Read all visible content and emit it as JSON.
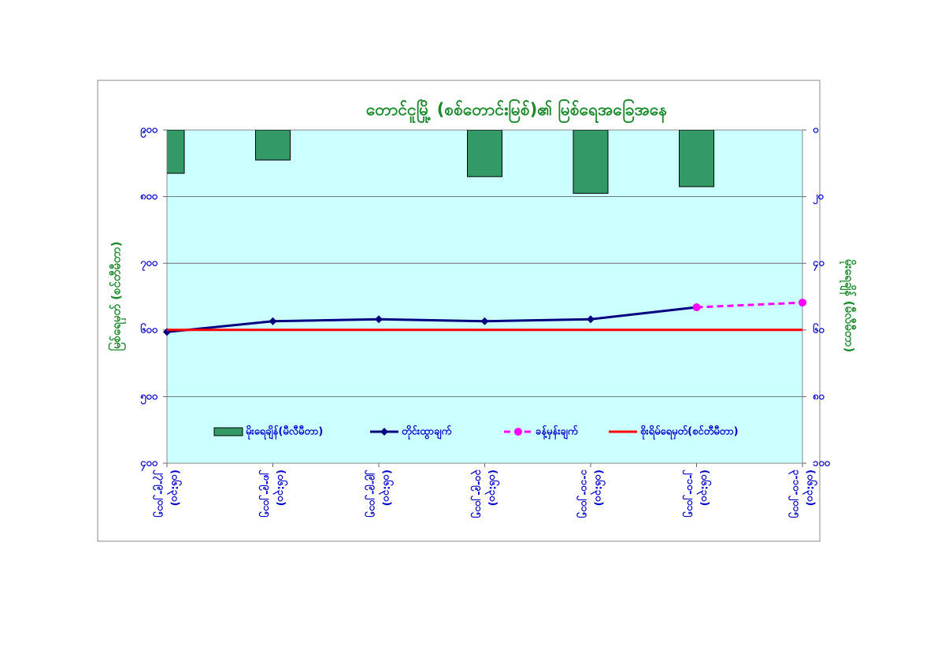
{
  "chart_data": {
    "type": "combo",
    "title": "တောင်ငူမြို့ (စစ်တောင်းမြစ်)၏ မြစ်ရေအခြေအနေ",
    "y_label": "မြစ်ရေမှတ် (စင်တီမီတာ)",
    "y2_label": "မိုးရေချိန် (မီလီမီတာ)",
    "categories": [
      [
        "၂၇-၉-၂၀၁၅",
        "(၀၆:၃၀)"
      ],
      [
        "၂၈-၉-၂၀၁၅",
        "(၀၆:၃၀)"
      ],
      [
        "၂၉-၉-၂၀၁၅",
        "(၀၆:၃၀)"
      ],
      [
        "၃၀-၉-၂၀၁၅",
        "(၀၆:၃၀)"
      ],
      [
        "၁-၁၀-၂၀၁၅",
        "(၀၆:၃၀)"
      ],
      [
        "၂-၁၀-၂၀၁၅",
        "(၀၆:၃၀)"
      ],
      [
        "၃-၁၀-၂၀၁၅",
        "(၀၆:၃၀)"
      ]
    ],
    "ylim": [
      400,
      900
    ],
    "yticks": [
      {
        "value": 900,
        "label": "၉၀၀"
      },
      {
        "value": 800,
        "label": "၈၀၀"
      },
      {
        "value": 700,
        "label": "၇၀၀"
      },
      {
        "value": 600,
        "label": "၆၀၀"
      },
      {
        "value": 500,
        "label": "၅၀၀"
      },
      {
        "value": 400,
        "label": "၄၀၀"
      }
    ],
    "y2lim": [
      0,
      100
    ],
    "y2_inverted": true,
    "y2ticks": [
      {
        "value": 0,
        "label": "၀"
      },
      {
        "value": 20,
        "label": "၂၀"
      },
      {
        "value": 40,
        "label": "၄၀"
      },
      {
        "value": 60,
        "label": "၆၀"
      },
      {
        "value": 80,
        "label": "၈၀"
      },
      {
        "value": 100,
        "label": "၁၀၀"
      }
    ],
    "grid": true,
    "series": [
      {
        "name": "မိုးရေချိန်(မီလီမီတာ)",
        "kind": "bar",
        "axis": "y2",
        "color": "#339966",
        "values": [
          13,
          9,
          null,
          14,
          19,
          17,
          null
        ]
      },
      {
        "name": "တိုင်းထွာချက်",
        "kind": "line",
        "marker": "diamond",
        "color": "#000080",
        "values": [
          597,
          613,
          616,
          613,
          616,
          634,
          null
        ]
      },
      {
        "name": "ခန့်မှန်းချက်",
        "kind": "line",
        "marker": "circle",
        "dashed": true,
        "color": "#ff00ff",
        "values": [
          null,
          null,
          null,
          null,
          null,
          634,
          641
        ]
      },
      {
        "name": "စိုးရိမ်ရေမှတ်(စင်တီမီတာ)",
        "kind": "line",
        "color": "#ff0000",
        "values": [
          600,
          600,
          600,
          600,
          600,
          600,
          600
        ]
      }
    ]
  }
}
